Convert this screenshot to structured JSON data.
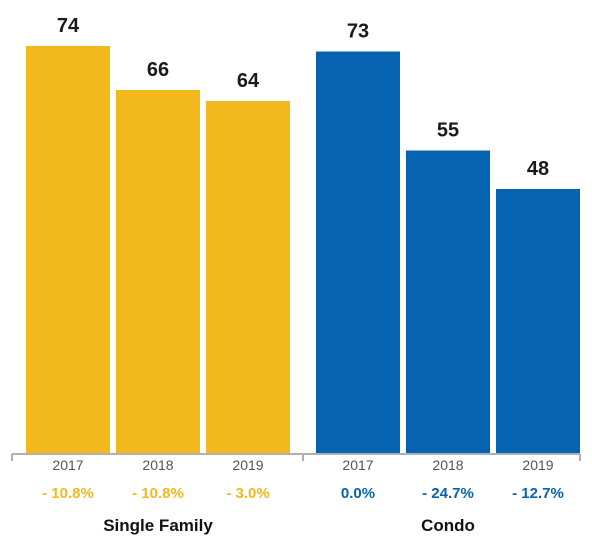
{
  "chart_data": {
    "type": "bar",
    "ylim": [
      0,
      80
    ],
    "grid": false,
    "groups": [
      {
        "name": "Single Family",
        "color": "#F2B81C",
        "bars": [
          {
            "year": "2017",
            "value": 74,
            "label": "74",
            "change": "- 10.8%"
          },
          {
            "year": "2018",
            "value": 66,
            "label": "66",
            "change": "- 10.8%"
          },
          {
            "year": "2019",
            "value": 64,
            "label": "64",
            "change": "- 3.0%"
          }
        ]
      },
      {
        "name": "Condo",
        "color": "#0563B2",
        "bars": [
          {
            "year": "2017",
            "value": 73,
            "label": "73",
            "change": "0.0%"
          },
          {
            "year": "2018",
            "value": 55,
            "label": "55",
            "change": "- 24.7%"
          },
          {
            "year": "2019",
            "value": 48,
            "label": "48",
            "change": "- 12.7%"
          }
        ]
      }
    ],
    "axis_color": "#b0b0b0"
  }
}
